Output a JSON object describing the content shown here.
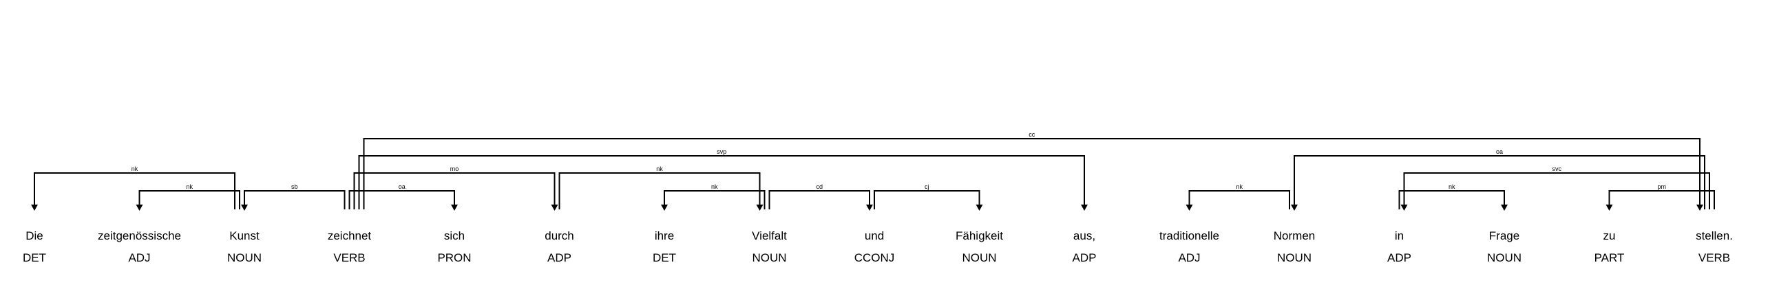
{
  "tokens": [
    {
      "text": "Die",
      "tag": "DET"
    },
    {
      "text": "zeitgenössische",
      "tag": "ADJ"
    },
    {
      "text": "Kunst",
      "tag": "NOUN"
    },
    {
      "text": "zeichnet",
      "tag": "VERB"
    },
    {
      "text": "sich",
      "tag": "PRON"
    },
    {
      "text": "durch",
      "tag": "ADP"
    },
    {
      "text": "ihre",
      "tag": "DET"
    },
    {
      "text": "Vielfalt",
      "tag": "NOUN"
    },
    {
      "text": "und",
      "tag": "CCONJ"
    },
    {
      "text": "Fähigkeit",
      "tag": "NOUN"
    },
    {
      "text": "aus,",
      "tag": "ADP"
    },
    {
      "text": "traditionelle",
      "tag": "ADJ"
    },
    {
      "text": "Normen",
      "tag": "NOUN"
    },
    {
      "text": "in",
      "tag": "ADP"
    },
    {
      "text": "Frage",
      "tag": "NOUN"
    },
    {
      "text": "zu",
      "tag": "PART"
    },
    {
      "text": "stellen.",
      "tag": "VERB"
    }
  ],
  "arcs": [
    {
      "from": 2,
      "to": 0,
      "label": "nk",
      "level": 2
    },
    {
      "from": 2,
      "to": 1,
      "label": "nk",
      "level": 1
    },
    {
      "from": 3,
      "to": 2,
      "label": "sb",
      "level": 1
    },
    {
      "from": 3,
      "to": 4,
      "label": "oa",
      "level": 1
    },
    {
      "from": 3,
      "to": 5,
      "label": "mo",
      "level": 2
    },
    {
      "from": 5,
      "to": 7,
      "label": "nk",
      "level": 2
    },
    {
      "from": 7,
      "to": 6,
      "label": "nk",
      "level": 1
    },
    {
      "from": 7,
      "to": 8,
      "label": "cd",
      "level": 1
    },
    {
      "from": 8,
      "to": 9,
      "label": "cj",
      "level": 1
    },
    {
      "from": 3,
      "to": 10,
      "label": "svp",
      "level": 3
    },
    {
      "from": 12,
      "to": 11,
      "label": "nk",
      "level": 1
    },
    {
      "from": 16,
      "to": 12,
      "label": "oa",
      "level": 3
    },
    {
      "from": 16,
      "to": 13,
      "label": "svc",
      "level": 2
    },
    {
      "from": 13,
      "to": 14,
      "label": "nk",
      "level": 1
    },
    {
      "from": 16,
      "to": 15,
      "label": "pm",
      "level": 1
    },
    {
      "from": 3,
      "to": 16,
      "label": "cc",
      "level": 4
    }
  ]
}
